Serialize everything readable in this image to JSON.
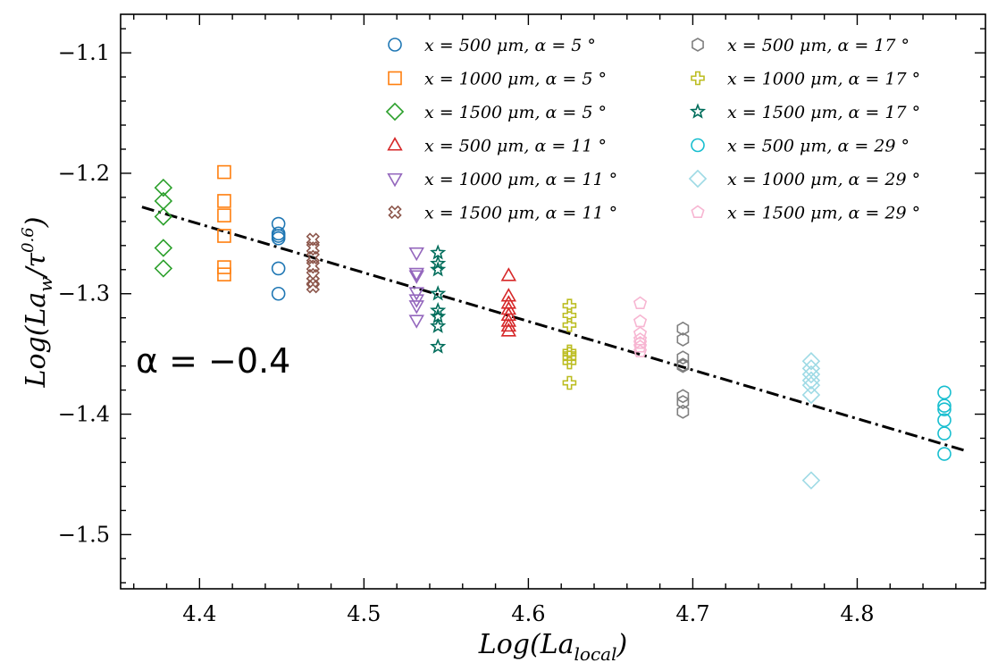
{
  "chart_data": {
    "type": "scatter",
    "title": "",
    "xlabel_main": "Log(La",
    "xlabel_sub": "local",
    "xlabel_close": ")",
    "ylabel_main": "Log(La",
    "ylabel_sub": "w",
    "ylabel_mid": "/τ",
    "ylabel_sup": "0.6",
    "ylabel_close": ")",
    "xlim": [
      4.352,
      4.878
    ],
    "ylim": [
      -1.545,
      -1.068
    ],
    "xticks": [
      4.4,
      4.5,
      4.6,
      4.7,
      4.8
    ],
    "xtick_labels": [
      "4.4",
      "4.5",
      "4.6",
      "4.7",
      "4.8"
    ],
    "yticks": [
      -1.1,
      -1.2,
      -1.3,
      -1.4,
      -1.5
    ],
    "ytick_labels": [
      "−1.1",
      "−1.2",
      "−1.3",
      "−1.4",
      "−1.5"
    ],
    "legend_position": "top-right",
    "annotation": "α = −0.4",
    "fit_line": {
      "x": [
        4.365,
        4.865
      ],
      "y": [
        -1.228,
        -1.43
      ],
      "style": "dash-dot",
      "color": "#000000"
    },
    "series": [
      {
        "name": "x = 500 μm, α = 5 °",
        "marker": "circle",
        "color": "#1f77b4",
        "x": [
          4.448,
          4.448,
          4.448,
          4.448,
          4.448,
          4.448
        ],
        "y": [
          -1.242,
          -1.25,
          -1.254,
          -1.279,
          -1.3,
          -1.252
        ]
      },
      {
        "name": "x = 1000 μm, α = 5 °",
        "marker": "square",
        "color": "#ff7f0e",
        "x": [
          4.415,
          4.415,
          4.415,
          4.415,
          4.415,
          4.415
        ],
        "y": [
          -1.199,
          -1.223,
          -1.235,
          -1.252,
          -1.278,
          -1.284
        ]
      },
      {
        "name": "x = 1500 μm, α = 5 °",
        "marker": "diamond",
        "color": "#2ca02c",
        "x": [
          4.378,
          4.378,
          4.378,
          4.378,
          4.378
        ],
        "y": [
          -1.212,
          -1.223,
          -1.236,
          -1.262,
          -1.279
        ]
      },
      {
        "name": "x = 500 μm, α = 11 °",
        "marker": "triangle-up",
        "color": "#d62728",
        "x": [
          4.588,
          4.588,
          4.588,
          4.588,
          4.588,
          4.588,
          4.588,
          4.588
        ],
        "y": [
          -1.285,
          -1.302,
          -1.308,
          -1.313,
          -1.318,
          -1.323,
          -1.327,
          -1.331
        ]
      },
      {
        "name": "x = 1000 μm, α = 11 °",
        "marker": "triangle-down",
        "color": "#9467bd",
        "x": [
          4.532,
          4.532,
          4.532,
          4.532,
          4.532,
          4.532,
          4.532
        ],
        "y": [
          -1.266,
          -1.283,
          -1.285,
          -1.299,
          -1.305,
          -1.31,
          -1.322
        ]
      },
      {
        "name": "x = 1500 μm, α = 11 °",
        "marker": "x-cross",
        "color": "#8c564b",
        "x": [
          4.469,
          4.469,
          4.469,
          4.469,
          4.469,
          4.469,
          4.469
        ],
        "y": [
          -1.255,
          -1.262,
          -1.27,
          -1.277,
          -1.285,
          -1.29,
          -1.294
        ]
      },
      {
        "name": "x = 500 μm, α = 17 °",
        "marker": "hexagon",
        "color": "#7f7f7f",
        "x": [
          4.694,
          4.694,
          4.694,
          4.694,
          4.694,
          4.694,
          4.694,
          4.694
        ],
        "y": [
          -1.329,
          -1.338,
          -1.353,
          -1.359,
          -1.385,
          -1.39,
          -1.398,
          -1.36
        ]
      },
      {
        "name": "x = 1000 μm, α = 17 °",
        "marker": "plus",
        "color": "#bcbd22",
        "x": [
          4.625,
          4.625,
          4.625,
          4.625,
          4.625,
          4.625,
          4.625,
          4.625
        ],
        "y": [
          -1.31,
          -1.318,
          -1.326,
          -1.348,
          -1.353,
          -1.357,
          -1.374,
          -1.35
        ]
      },
      {
        "name": "x = 1500 μm, α = 17 °",
        "marker": "star",
        "color": "#006d5b",
        "x": [
          4.545,
          4.545,
          4.545,
          4.545,
          4.545,
          4.545,
          4.545,
          4.545
        ],
        "y": [
          -1.266,
          -1.275,
          -1.28,
          -1.3,
          -1.314,
          -1.319,
          -1.327,
          -1.344
        ]
      },
      {
        "name": "x = 500 μm, α = 29 °",
        "marker": "circle",
        "color": "#17becf",
        "x": [
          4.853,
          4.853,
          4.853,
          4.853,
          4.853,
          4.853
        ],
        "y": [
          -1.382,
          -1.393,
          -1.396,
          -1.405,
          -1.416,
          -1.433
        ]
      },
      {
        "name": "x = 1000 μm, α = 29 °",
        "marker": "diamond",
        "color": "#9edae5",
        "x": [
          4.772,
          4.772,
          4.772,
          4.772,
          4.772,
          4.772,
          4.772
        ],
        "y": [
          -1.356,
          -1.362,
          -1.367,
          -1.372,
          -1.376,
          -1.384,
          -1.455
        ]
      },
      {
        "name": "x = 1500 μm, α = 29 °",
        "marker": "pentagon",
        "color": "#f7b6d2",
        "x": [
          4.668,
          4.668,
          4.668,
          4.668,
          4.668,
          4.668,
          4.668
        ],
        "y": [
          -1.308,
          -1.323,
          -1.333,
          -1.338,
          -1.341,
          -1.344,
          -1.348
        ]
      }
    ]
  }
}
